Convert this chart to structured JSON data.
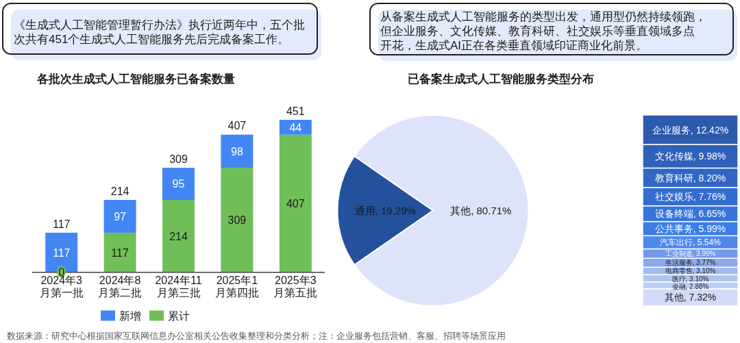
{
  "chart_data": [
    {
      "type": "bar",
      "title": "各批次生成式人工智能服务已备案数量",
      "categories": [
        "2024年3月第一批",
        "2024年8月第二批",
        "2024年11月第三批",
        "2025年1月第四批",
        "2025年3月第五批"
      ],
      "stacked": true,
      "series": [
        {
          "name": "累计",
          "color": "#70bf58",
          "values": [
            0,
            117,
            214,
            309,
            407
          ]
        },
        {
          "name": "新增",
          "color": "#4286f4",
          "values": [
            117,
            97,
            95,
            98,
            44
          ]
        }
      ],
      "totals": [
        "117",
        "214",
        "309",
        "407",
        "451"
      ],
      "data_labels": true,
      "legend": "bottom",
      "annotations": [
        "《生成式人工智能管理暂行办法》执行近两年中，五个批次共有451个生成式人工智能服务先后完成备案工作。",
        "数据来源：研究中心根据国家互联网信息办公室相关公告收集整理和分类分析；注：企业服务包括营销、客服、招聘等场景应用"
      ]
    },
    {
      "type": "pie",
      "title": "已备案生成式人工智能服务类型分布",
      "categories": [
        "通用",
        "其他"
      ],
      "values": [
        19.29,
        80.71
      ],
      "colors": [
        "#23519c",
        "#dde3f8"
      ],
      "value_labels": [
        "19.29%",
        "80.71%"
      ],
      "annotations": [
        "从备案生成式人工智能服务的类型出发，通用型仍然持续领跑，但企业服务、文化传媒、教育科研、社交娱乐等垂直领域多点开花，生成式AI正在各类垂直领域印证商业化前景。"
      ]
    },
    {
      "type": "bar",
      "stacked": true,
      "categories": [
        null
      ],
      "series": [
        {
          "color": "#d2dcf8",
          "values": [
            7.32
          ],
          "value_labels": [
            "其他, 7.32%"
          ]
        },
        {
          "color": "#bccdf6",
          "values": [
            2.88
          ],
          "value_labels": [
            "金融, 2.88%"
          ]
        },
        {
          "color": "#b0c4f5",
          "values": [
            3.1
          ],
          "value_labels": [
            "医疗, 3.10%"
          ]
        },
        {
          "color": "#a2b9f3",
          "values": [
            3.1
          ],
          "value_labels": [
            "电商零售, 3.10%"
          ]
        },
        {
          "color": "#89a8ef",
          "values": [
            3.77
          ],
          "value_labels": [
            "生活服务, 3.77%"
          ]
        },
        {
          "color": "#7399ec",
          "values": [
            3.99
          ],
          "value_labels": [
            "工业制造, 3.99%"
          ]
        },
        {
          "color": "#4f88ee",
          "values": [
            5.54
          ],
          "value_labels": [
            "汽车出行, 5.54%"
          ]
        },
        {
          "color": "#3b7ee8",
          "values": [
            5.99
          ],
          "value_labels": [
            "公共事务, 5.99%"
          ]
        },
        {
          "color": "#3774dc",
          "values": [
            6.65
          ],
          "value_labels": [
            "设备终端, 6.65%"
          ]
        },
        {
          "color": "#336cd0",
          "values": [
            7.76
          ],
          "value_labels": [
            "社交娱乐, 7.76%"
          ]
        },
        {
          "color": "#3067c5",
          "values": [
            8.2
          ],
          "value_labels": [
            "教育科研, 8.20%"
          ]
        },
        {
          "color": "#2e61ba",
          "values": [
            9.98
          ],
          "value_labels": [
            "文化传媒, 9.98%"
          ]
        },
        {
          "color": "#2c5aad",
          "values": [
            12.42
          ],
          "value_labels": [
            "企业服务, 12.42%"
          ]
        }
      ]
    }
  ]
}
